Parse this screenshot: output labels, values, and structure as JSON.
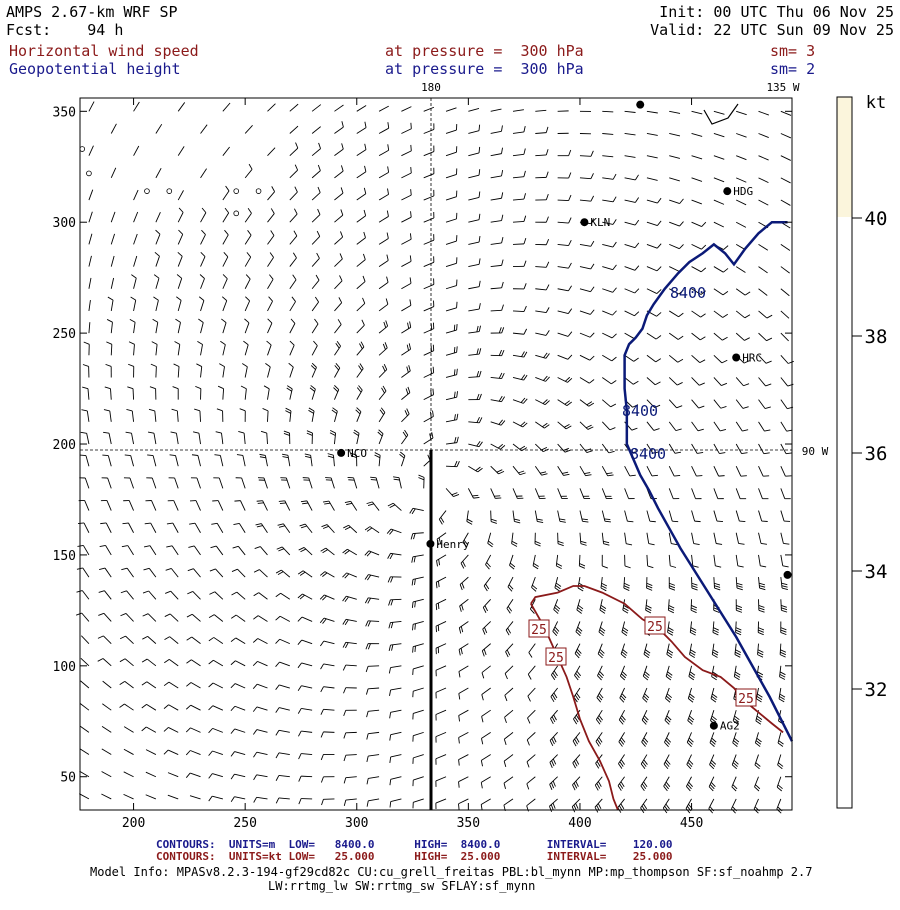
{
  "header": {
    "model": "AMPS 2.67-km WRF SP",
    "fcst": "Fcst:    94 h",
    "init": "Init: 00 UTC Thu 06 Nov 25",
    "valid": "Valid: 22 UTC Sun 09 Nov 25",
    "field1": "Horizontal wind speed",
    "field1_level": "at pressure =  300 hPa",
    "field1_sm": "sm= 3",
    "field2": "Geopotential height",
    "field2_level": "at pressure =  300 hPa",
    "field2_sm": "sm= 2"
  },
  "chart_data": {
    "type": "contour",
    "x_ticks": [
      "200",
      "250",
      "300",
      "350",
      "400",
      "450"
    ],
    "y_ticks": [
      "50",
      "100",
      "150",
      "200",
      "250",
      "300",
      "350"
    ],
    "xlim": [
      176,
      495
    ],
    "ylim": [
      35,
      356
    ],
    "meridian_labels": [
      "180",
      "135 W",
      "90 W"
    ],
    "height_contour": {
      "units": "m",
      "value": 8400,
      "labels": [
        "8400",
        "8400",
        "8400"
      ],
      "color": "#0b1a78",
      "points": [
        [
          493,
          300
        ],
        [
          486,
          300
        ],
        [
          480,
          295
        ],
        [
          474,
          288
        ],
        [
          469,
          281
        ],
        [
          465,
          286
        ],
        [
          460,
          290
        ],
        [
          455,
          286
        ],
        [
          449,
          282
        ],
        [
          444,
          277
        ],
        [
          438,
          270
        ],
        [
          433,
          263
        ],
        [
          430,
          258
        ],
        [
          428,
          252
        ],
        [
          425,
          248
        ],
        [
          422,
          245
        ],
        [
          420,
          240
        ],
        [
          420,
          234
        ],
        [
          420,
          225
        ],
        [
          421,
          215
        ],
        [
          421,
          205
        ],
        [
          421,
          200
        ],
        [
          424,
          193
        ],
        [
          427,
          186
        ],
        [
          431,
          179
        ],
        [
          435,
          171
        ],
        [
          440,
          162
        ],
        [
          445,
          153
        ],
        [
          450,
          145
        ],
        [
          455,
          137
        ],
        [
          460,
          129
        ],
        [
          465,
          121
        ],
        [
          470,
          113
        ],
        [
          475,
          104
        ],
        [
          480,
          95
        ],
        [
          485,
          86
        ],
        [
          490,
          76
        ],
        [
          495,
          66
        ]
      ]
    },
    "speed_contour": {
      "units": "kt",
      "value": 25,
      "labels": [
        "25",
        "25",
        "25",
        "25"
      ],
      "color": "#8b1a1a",
      "points": [
        [
          378,
          128
        ],
        [
          380,
          131
        ],
        [
          390,
          133
        ],
        [
          397,
          136
        ],
        [
          402,
          136
        ],
        [
          410,
          133
        ],
        [
          420,
          128
        ],
        [
          428,
          121
        ],
        [
          435,
          117
        ],
        [
          441,
          111
        ],
        [
          447,
          104
        ],
        [
          455,
          98
        ],
        [
          463,
          95
        ],
        [
          469,
          90
        ],
        [
          474,
          84
        ],
        [
          480,
          79
        ],
        [
          486,
          74
        ],
        [
          491,
          70
        ]
      ],
      "points2": [
        [
          378,
          128
        ],
        [
          382,
          121
        ],
        [
          386,
          113
        ],
        [
          390,
          104
        ],
        [
          394,
          95
        ],
        [
          397,
          86
        ],
        [
          400,
          76
        ],
        [
          404,
          66
        ],
        [
          409,
          57
        ],
        [
          413,
          48
        ],
        [
          415,
          40
        ],
        [
          417,
          35
        ]
      ]
    },
    "stations": [
      {
        "name": "NCO",
        "x": 293,
        "y": 196
      },
      {
        "name": "Henry",
        "x": 333,
        "y": 155
      },
      {
        "name": "KLN",
        "x": 402,
        "y": 300
      },
      {
        "name": "HDG",
        "x": 466,
        "y": 314
      },
      {
        "name": "HRC",
        "x": 470,
        "y": 239
      },
      {
        "name": "AG2",
        "x": 460,
        "y": 73
      },
      {
        "name": "",
        "x": 427,
        "y": 353
      },
      {
        "name": "",
        "x": 493,
        "y": 141
      }
    ],
    "colorbar": {
      "unit": "kt",
      "ticks": [
        "40",
        "38",
        "36",
        "34",
        "32"
      ],
      "fill_color": "#fbf5dc"
    }
  },
  "footer": {
    "line1_label": "CONTOURS:  UNITS=m  LOW=   8400.0      HIGH=  8400.0       INTERVAL=    120.00",
    "line2_label": "CONTOURS:  UNITS=kt LOW=   25.000      HIGH=  25.000       INTERVAL=    25.000",
    "model_info": "Model Info: MPASv8.2.3-194-gf29cd82c CU:cu_grell_freitas PBL:bl_mynn MP:mp_thompson SF:sf_noahmp 2.7",
    "model_info2": "LW:rrtmg_lw SW:rrtmg_sw SFLAY:sf_mynn"
  }
}
